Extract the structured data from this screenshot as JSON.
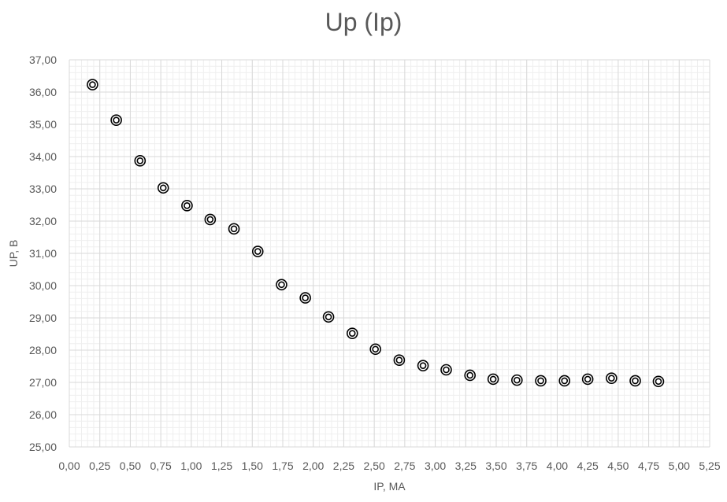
{
  "chart_data": {
    "type": "scatter",
    "title": "Up (Ip)",
    "xlabel": "IP, MA",
    "ylabel": "UP, B",
    "xlim": [
      0,
      5.25
    ],
    "ylim": [
      25,
      37
    ],
    "x_major_step": 0.25,
    "y_major_step": 1,
    "x_minor_divisions": 5,
    "y_minor_divisions": 5,
    "x_tick_labels": [
      "0,00",
      "0,25",
      "0,50",
      "0,75",
      "1,00",
      "1,25",
      "1,50",
      "1,75",
      "2,00",
      "2,25",
      "2,50",
      "2,75",
      "3,00",
      "3,25",
      "3,50",
      "3,75",
      "4,00",
      "4,25",
      "4,50",
      "4,75",
      "5,00",
      "5,25"
    ],
    "y_tick_labels": [
      "25,00",
      "26,00",
      "27,00",
      "28,00",
      "29,00",
      "30,00",
      "31,00",
      "32,00",
      "33,00",
      "34,00",
      "35,00",
      "36,00",
      "37,00"
    ],
    "grid": true,
    "marker": "double-circle",
    "marker_color": "#000000",
    "grid_major_color": "#d9d9d9",
    "grid_minor_color": "#efefef",
    "series": [
      {
        "x": [
          0.19,
          0.385,
          0.58,
          0.77,
          0.965,
          1.155,
          1.35,
          1.545,
          1.74,
          1.935,
          2.125,
          2.32,
          2.51,
          2.705,
          2.9,
          3.09,
          3.285,
          3.475,
          3.67,
          3.865,
          4.06,
          4.25,
          4.445,
          4.64,
          4.83
        ],
        "y": [
          36.23,
          35.13,
          33.87,
          33.03,
          32.48,
          32.05,
          31.76,
          31.06,
          30.03,
          29.62,
          29.03,
          28.52,
          28.03,
          27.69,
          27.52,
          27.39,
          27.22,
          27.1,
          27.07,
          27.05,
          27.05,
          27.1,
          27.13,
          27.05,
          27.03
        ]
      }
    ]
  }
}
